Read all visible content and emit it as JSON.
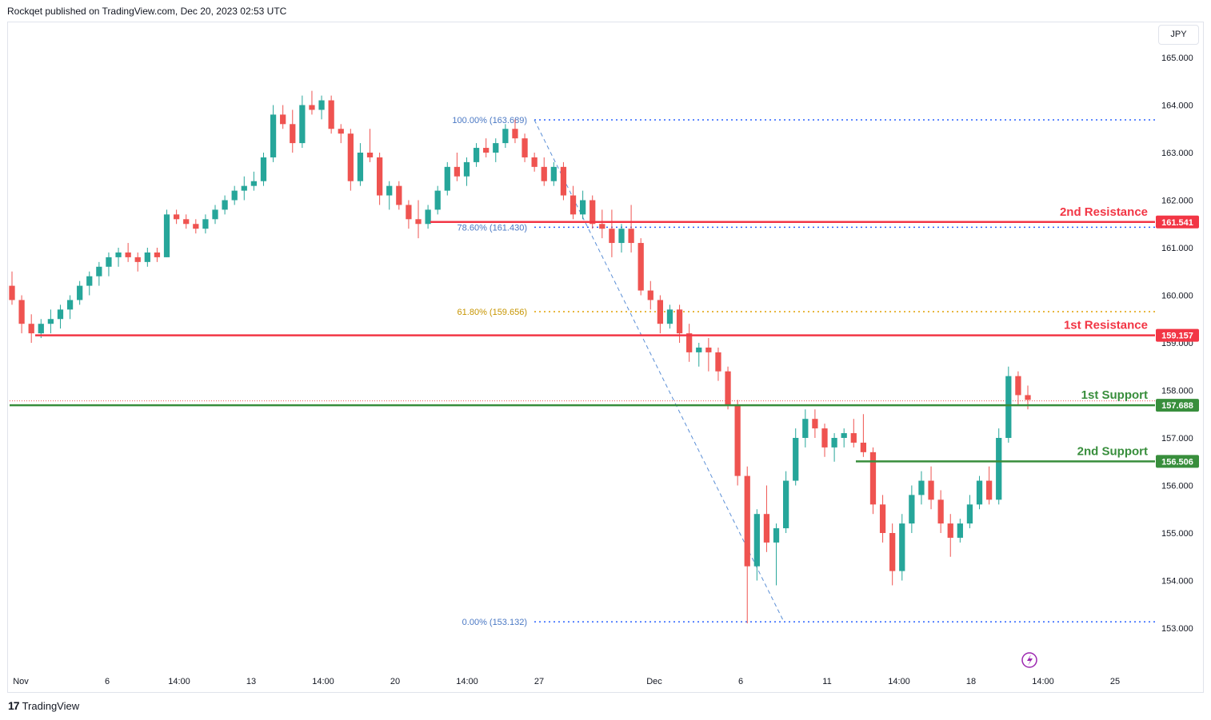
{
  "header": {
    "published": "Rockqet published on TradingView.com, Dec 20, 2023 02:53 UTC"
  },
  "footer": {
    "brand": "TradingView",
    "logo_glyph": "17"
  },
  "currency": "JPY",
  "colors": {
    "up": "#26a69a",
    "down": "#ef5350",
    "resistance": "#f23645",
    "support": "#388e3c",
    "fib": "#2962ff",
    "fib_gold": "#e0a000",
    "fib_label": "#4a78c4",
    "fib_gold_label": "#c79500"
  },
  "chart_data": {
    "type": "candlestick",
    "x_axis_labels": [
      "Nov",
      "6",
      "14:00",
      "13",
      "14:00",
      "20",
      "14:00",
      "27",
      "Dec",
      "6",
      "11",
      "14:00",
      "18",
      "14:00",
      "25"
    ],
    "y_axis": {
      "range": [
        152.4,
        165.5
      ],
      "ticks": [
        153,
        154,
        155,
        156,
        157,
        158,
        159,
        160,
        161,
        162,
        163,
        164,
        165
      ],
      "tick_labels": [
        "153.000",
        "154.000",
        "155.000",
        "156.000",
        "157.000",
        "158.000",
        "159.000",
        "160.000",
        "161.000",
        "162.000",
        "163.000",
        "164.000",
        "165.000"
      ]
    },
    "levels": [
      {
        "label": "2nd Resistance",
        "value": 161.541,
        "value_label": "161.541",
        "kind": "resistance"
      },
      {
        "label": "1st Resistance",
        "value": 159.157,
        "value_label": "159.157",
        "kind": "resistance"
      },
      {
        "label": "1st Support",
        "value": 157.688,
        "value_label": "157.688",
        "kind": "support"
      },
      {
        "label": "2nd Support",
        "value": 156.506,
        "value_label": "156.506",
        "kind": "support"
      }
    ],
    "fibonacci": [
      {
        "label": "100.00% (163.689)",
        "value": 163.689
      },
      {
        "label": "78.60% (161.430)",
        "value": 161.43
      },
      {
        "label": "61.80% (159.656)",
        "value": 159.656
      },
      {
        "label": "0.00% (153.132)",
        "value": 153.132
      }
    ],
    "close_line": 157.78,
    "candles": [
      [
        160.2,
        160.5,
        159.8,
        159.9
      ],
      [
        159.9,
        160.0,
        159.2,
        159.4
      ],
      [
        159.4,
        159.6,
        159.0,
        159.2
      ],
      [
        159.2,
        159.5,
        159.1,
        159.4
      ],
      [
        159.4,
        159.7,
        159.2,
        159.5
      ],
      [
        159.5,
        159.8,
        159.3,
        159.7
      ],
      [
        159.7,
        160.0,
        159.5,
        159.9
      ],
      [
        159.9,
        160.3,
        159.8,
        160.2
      ],
      [
        160.2,
        160.5,
        160.0,
        160.4
      ],
      [
        160.4,
        160.7,
        160.2,
        160.6
      ],
      [
        160.6,
        160.9,
        160.4,
        160.8
      ],
      [
        160.8,
        161.0,
        160.6,
        160.9
      ],
      [
        160.9,
        161.1,
        160.7,
        160.8
      ],
      [
        160.8,
        160.9,
        160.5,
        160.7
      ],
      [
        160.7,
        161.0,
        160.6,
        160.9
      ],
      [
        160.9,
        161.0,
        160.7,
        160.8
      ],
      [
        160.8,
        161.8,
        160.8,
        161.7
      ],
      [
        161.7,
        161.8,
        161.5,
        161.6
      ],
      [
        161.6,
        161.7,
        161.4,
        161.5
      ],
      [
        161.5,
        161.6,
        161.3,
        161.4
      ],
      [
        161.4,
        161.7,
        161.3,
        161.6
      ],
      [
        161.6,
        161.9,
        161.5,
        161.8
      ],
      [
        161.8,
        162.1,
        161.7,
        162.0
      ],
      [
        162.0,
        162.3,
        161.9,
        162.2
      ],
      [
        162.2,
        162.5,
        162.0,
        162.3
      ],
      [
        162.3,
        162.6,
        162.2,
        162.4
      ],
      [
        162.4,
        163.0,
        162.3,
        162.9
      ],
      [
        162.9,
        164.0,
        162.8,
        163.8
      ],
      [
        163.8,
        164.0,
        163.5,
        163.6
      ],
      [
        163.6,
        163.9,
        163.0,
        163.2
      ],
      [
        163.2,
        164.2,
        163.1,
        164.0
      ],
      [
        164.0,
        164.3,
        163.8,
        163.9
      ],
      [
        163.9,
        164.2,
        163.7,
        164.1
      ],
      [
        164.1,
        164.2,
        163.4,
        163.5
      ],
      [
        163.5,
        163.6,
        163.2,
        163.4
      ],
      [
        163.4,
        163.5,
        162.2,
        162.4
      ],
      [
        162.4,
        163.2,
        162.3,
        163.0
      ],
      [
        163.0,
        163.5,
        162.8,
        162.9
      ],
      [
        162.9,
        163.0,
        161.9,
        162.1
      ],
      [
        162.1,
        162.4,
        161.8,
        162.3
      ],
      [
        162.3,
        162.4,
        161.8,
        161.9
      ],
      [
        161.9,
        162.0,
        161.4,
        161.6
      ],
      [
        161.6,
        162.0,
        161.2,
        161.5
      ],
      [
        161.5,
        161.9,
        161.4,
        161.8
      ],
      [
        161.8,
        162.3,
        161.7,
        162.2
      ],
      [
        162.2,
        162.8,
        162.1,
        162.7
      ],
      [
        162.7,
        163.0,
        162.4,
        162.5
      ],
      [
        162.5,
        162.9,
        162.3,
        162.8
      ],
      [
        162.8,
        163.2,
        162.7,
        163.1
      ],
      [
        163.1,
        163.3,
        162.9,
        163.0
      ],
      [
        163.0,
        163.3,
        162.8,
        163.2
      ],
      [
        163.2,
        163.6,
        163.1,
        163.5
      ],
      [
        163.5,
        163.7,
        163.2,
        163.3
      ],
      [
        163.3,
        163.4,
        162.8,
        162.9
      ],
      [
        162.9,
        163.0,
        162.6,
        162.7
      ],
      [
        162.7,
        162.9,
        162.3,
        162.4
      ],
      [
        162.4,
        162.8,
        162.3,
        162.7
      ],
      [
        162.7,
        162.8,
        162.0,
        162.1
      ],
      [
        162.1,
        162.3,
        161.6,
        161.7
      ],
      [
        161.7,
        162.2,
        161.6,
        162.0
      ],
      [
        162.0,
        162.1,
        161.4,
        161.5
      ],
      [
        161.5,
        161.8,
        161.2,
        161.4
      ],
      [
        161.4,
        161.8,
        160.8,
        161.1
      ],
      [
        161.1,
        161.5,
        160.9,
        161.4
      ],
      [
        161.4,
        161.9,
        160.9,
        161.1
      ],
      [
        161.1,
        161.2,
        160.0,
        160.1
      ],
      [
        160.1,
        160.3,
        159.7,
        159.9
      ],
      [
        159.9,
        160.0,
        159.2,
        159.4
      ],
      [
        159.4,
        159.8,
        159.3,
        159.7
      ],
      [
        159.7,
        159.8,
        159.0,
        159.2
      ],
      [
        159.2,
        159.4,
        158.6,
        158.8
      ],
      [
        158.8,
        159.0,
        158.5,
        158.9
      ],
      [
        158.9,
        159.1,
        158.4,
        158.8
      ],
      [
        158.8,
        158.9,
        158.2,
        158.4
      ],
      [
        158.4,
        158.5,
        157.6,
        157.7
      ],
      [
        157.7,
        157.8,
        156.0,
        156.2
      ],
      [
        156.2,
        156.4,
        153.1,
        154.3
      ],
      [
        154.3,
        155.5,
        154.0,
        155.4
      ],
      [
        155.4,
        156.0,
        154.6,
        154.8
      ],
      [
        154.8,
        155.2,
        153.9,
        155.1
      ],
      [
        155.1,
        156.3,
        155.0,
        156.1
      ],
      [
        156.1,
        157.2,
        156.0,
        157.0
      ],
      [
        157.0,
        157.6,
        156.8,
        157.4
      ],
      [
        157.4,
        157.6,
        157.0,
        157.2
      ],
      [
        157.2,
        157.3,
        156.6,
        156.8
      ],
      [
        156.8,
        157.1,
        156.5,
        157.0
      ],
      [
        157.0,
        157.2,
        156.8,
        157.1
      ],
      [
        157.1,
        157.4,
        156.8,
        156.9
      ],
      [
        156.9,
        157.5,
        156.6,
        156.7
      ],
      [
        156.7,
        156.8,
        155.4,
        155.6
      ],
      [
        155.6,
        155.8,
        154.8,
        155.0
      ],
      [
        155.0,
        155.2,
        153.9,
        154.2
      ],
      [
        154.2,
        155.4,
        154.0,
        155.2
      ],
      [
        155.2,
        156.0,
        155.0,
        155.8
      ],
      [
        155.8,
        156.3,
        155.6,
        156.1
      ],
      [
        156.1,
        156.4,
        155.5,
        155.7
      ],
      [
        155.7,
        155.9,
        155.0,
        155.2
      ],
      [
        155.2,
        155.4,
        154.5,
        154.9
      ],
      [
        154.9,
        155.3,
        154.8,
        155.2
      ],
      [
        155.2,
        155.8,
        155.1,
        155.6
      ],
      [
        155.6,
        156.2,
        155.5,
        156.1
      ],
      [
        156.1,
        156.4,
        155.6,
        155.7
      ],
      [
        155.7,
        157.2,
        155.6,
        157.0
      ],
      [
        157.0,
        158.5,
        156.9,
        158.3
      ],
      [
        158.3,
        158.4,
        157.7,
        157.9
      ],
      [
        157.9,
        158.1,
        157.6,
        157.8
      ]
    ]
  }
}
